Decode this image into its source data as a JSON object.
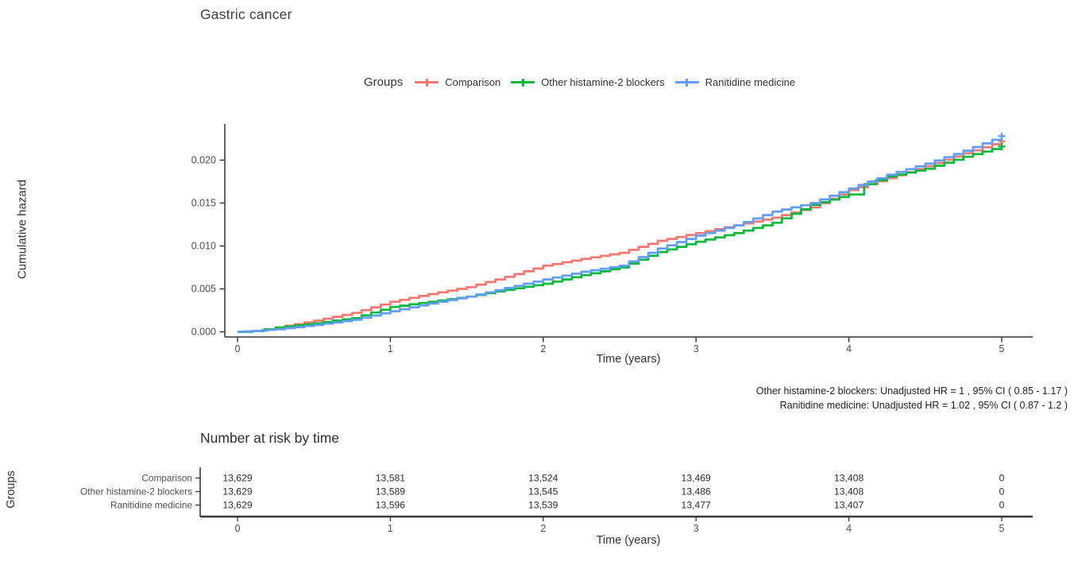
{
  "title": "Gastric cancer",
  "legend": {
    "label": "Groups",
    "items": [
      {
        "name": "Comparison",
        "color": "#F8766D"
      },
      {
        "name": "Other histamine-2 blockers",
        "color": "#00BA38"
      },
      {
        "name": "Ranitidine medicine",
        "color": "#619CFF"
      }
    ]
  },
  "chart_data": {
    "type": "line",
    "subtype": "step-function-cumulative-hazard",
    "title": "Gastric cancer",
    "xlabel": "Time (years)",
    "ylabel": "Cumulative hazard",
    "xlim": [
      0,
      5.15
    ],
    "ylim": [
      0,
      0.0235
    ],
    "x_ticks": [
      "0",
      "1",
      "2",
      "3",
      "4",
      "5"
    ],
    "x_tick_values": [
      0,
      1,
      2,
      3,
      4,
      5
    ],
    "y_ticks": [
      "0.000",
      "0.005",
      "0.010",
      "0.015",
      "0.020"
    ],
    "y_tick_values": [
      0.0,
      0.005,
      0.01,
      0.015,
      0.02
    ],
    "grid": false,
    "legend_position": "top",
    "series": [
      {
        "name": "Comparison",
        "color": "#F8766D",
        "points": [
          [
            0,
            0
          ],
          [
            0.1,
            0.0001
          ],
          [
            0.25,
            0.0005
          ],
          [
            0.5,
            0.0013
          ],
          [
            0.75,
            0.0022
          ],
          [
            1.0,
            0.0035
          ],
          [
            1.25,
            0.0044
          ],
          [
            1.5,
            0.0052
          ],
          [
            1.75,
            0.0064
          ],
          [
            2.0,
            0.0077
          ],
          [
            2.25,
            0.0085
          ],
          [
            2.5,
            0.0092
          ],
          [
            2.75,
            0.0106
          ],
          [
            3.0,
            0.0115
          ],
          [
            3.25,
            0.0124
          ],
          [
            3.5,
            0.0133
          ],
          [
            3.75,
            0.0145
          ],
          [
            4.0,
            0.0165
          ],
          [
            4.25,
            0.0179
          ],
          [
            4.5,
            0.0193
          ],
          [
            4.75,
            0.0208
          ],
          [
            5.0,
            0.0222
          ]
        ],
        "censored_at_end": true
      },
      {
        "name": "Other histamine-2 blockers",
        "color": "#00BA38",
        "points": [
          [
            0,
            0
          ],
          [
            0.1,
            0.0001
          ],
          [
            0.25,
            0.0005
          ],
          [
            0.5,
            0.001
          ],
          [
            0.75,
            0.0016
          ],
          [
            1.0,
            0.0029
          ],
          [
            1.25,
            0.0035
          ],
          [
            1.5,
            0.0041
          ],
          [
            1.75,
            0.0049
          ],
          [
            2.0,
            0.0056
          ],
          [
            2.25,
            0.0066
          ],
          [
            2.5,
            0.0075
          ],
          [
            2.75,
            0.0093
          ],
          [
            3.0,
            0.0105
          ],
          [
            3.25,
            0.0115
          ],
          [
            3.5,
            0.0127
          ],
          [
            3.75,
            0.0148
          ],
          [
            4.0,
            0.016
          ],
          [
            4.1,
            0.0172
          ],
          [
            4.25,
            0.0181
          ],
          [
            4.5,
            0.019
          ],
          [
            4.75,
            0.0204
          ],
          [
            5.0,
            0.0216
          ]
        ],
        "censored_at_end": true
      },
      {
        "name": "Ranitidine medicine",
        "color": "#619CFF",
        "points": [
          [
            0,
            0
          ],
          [
            0.1,
            0.0001
          ],
          [
            0.25,
            0.0003
          ],
          [
            0.5,
            0.0008
          ],
          [
            0.75,
            0.0014
          ],
          [
            1.0,
            0.0024
          ],
          [
            1.25,
            0.0033
          ],
          [
            1.5,
            0.0041
          ],
          [
            1.75,
            0.0051
          ],
          [
            2.0,
            0.0061
          ],
          [
            2.25,
            0.007
          ],
          [
            2.5,
            0.0077
          ],
          [
            2.75,
            0.0097
          ],
          [
            3.0,
            0.0112
          ],
          [
            3.25,
            0.0124
          ],
          [
            3.5,
            0.014
          ],
          [
            3.75,
            0.015
          ],
          [
            4.0,
            0.0167
          ],
          [
            4.25,
            0.0183
          ],
          [
            4.5,
            0.0196
          ],
          [
            4.75,
            0.0211
          ],
          [
            5.0,
            0.0228
          ]
        ],
        "censored_at_end": true
      }
    ]
  },
  "annotations": [
    "Other histamine-2 blockers: Unadjusted HR = 1 , 95% CI ( 0.85 - 1.17 )",
    "Ranitidine medicine: Unadjusted HR = 1.02 , 95% CI ( 0.87 - 1.2 )"
  ],
  "risk_table": {
    "title": "Number at risk by time",
    "group_axis_label": "Groups",
    "xlabel": "Time (years)",
    "time_ticks": [
      "0",
      "1",
      "2",
      "3",
      "4",
      "5"
    ],
    "time_tick_values": [
      0,
      1,
      2,
      3,
      4,
      5
    ],
    "rows": [
      {
        "group": "Comparison",
        "values": [
          "13,629",
          "13,581",
          "13,524",
          "13,469",
          "13,408",
          "0"
        ]
      },
      {
        "group": "Other histamine-2 blockers",
        "values": [
          "13,629",
          "13,589",
          "13,545",
          "13,486",
          "13,408",
          "0"
        ]
      },
      {
        "group": "Ranitidine medicine",
        "values": [
          "13,629",
          "13,596",
          "13,539",
          "13,477",
          "13,407",
          "0"
        ]
      }
    ]
  },
  "colors": {
    "axis": "#333333",
    "tick_label": "#4f4f4f",
    "risk_value": "#2e2e2e",
    "risk_axis": "#3a3a3a"
  }
}
